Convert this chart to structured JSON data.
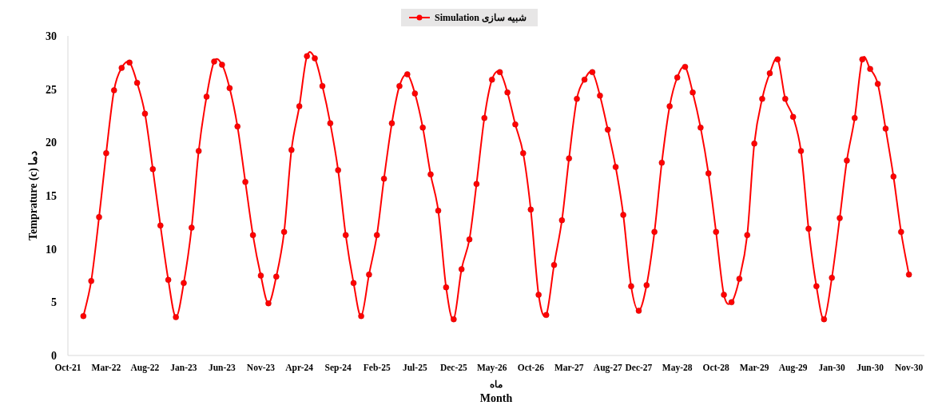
{
  "chart_data": {
    "type": "line",
    "xlabel": "ماه\nMonth",
    "ylabel": "Temprature (c) دما",
    "x": [
      "2021-12",
      "2022-01",
      "2022-02",
      "2022-03",
      "2022-04",
      "2022-05",
      "2022-06",
      "2022-07",
      "2022-08",
      "2022-09",
      "2022-10",
      "2022-11",
      "2022-12",
      "2023-01",
      "2023-02",
      "2023-03",
      "2023-04",
      "2023-05",
      "2023-06",
      "2023-07",
      "2023-08",
      "2023-09",
      "2023-10",
      "2023-11",
      "2023-12",
      "2024-01",
      "2024-02",
      "2024-03",
      "2024-04",
      "2024-05",
      "2024-06",
      "2024-07",
      "2024-08",
      "2024-09",
      "2024-10",
      "2024-11",
      "2024-12",
      "2025-01",
      "2025-02",
      "2025-03",
      "2025-04",
      "2025-05",
      "2025-06",
      "2025-07",
      "2025-08",
      "2025-09",
      "2025-10",
      "2025-11",
      "2025-12",
      "2026-01",
      "2026-02",
      "2026-03",
      "2026-04",
      "2026-05",
      "2026-06",
      "2026-07",
      "2026-08",
      "2026-09",
      "2026-10",
      "2026-11",
      "2026-12",
      "2027-01",
      "2027-02",
      "2027-03",
      "2027-04",
      "2027-05",
      "2027-06",
      "2027-07",
      "2027-08",
      "2027-09",
      "2027-10",
      "2027-11",
      "2027-12",
      "2028-01",
      "2028-02",
      "2028-03",
      "2028-04",
      "2028-05",
      "2028-06",
      "2028-07",
      "2028-08",
      "2028-09",
      "2028-10",
      "2028-11",
      "2028-12",
      "2029-01",
      "2029-02",
      "2029-03",
      "2029-04",
      "2029-05",
      "2029-06",
      "2029-07",
      "2029-08",
      "2029-09",
      "2029-10",
      "2029-11",
      "2029-12",
      "2030-01",
      "2030-02",
      "2030-03",
      "2030-04",
      "2030-05",
      "2030-06",
      "2030-07",
      "2030-08",
      "2030-09",
      "2030-10",
      "2030-11"
    ],
    "series": [
      {
        "name": "Simulation شبیه سازی",
        "color": "#ff0000",
        "values": [
          3.7,
          7.0,
          13.0,
          19.0,
          24.9,
          27.0,
          27.5,
          25.6,
          22.7,
          17.5,
          12.2,
          7.1,
          3.6,
          6.8,
          12.0,
          19.2,
          24.3,
          27.6,
          27.3,
          25.1,
          21.5,
          16.3,
          11.3,
          7.5,
          4.9,
          7.4,
          11.6,
          19.3,
          23.4,
          28.1,
          27.9,
          25.3,
          21.8,
          17.4,
          11.3,
          6.8,
          3.7,
          7.6,
          11.3,
          16.6,
          21.8,
          25.3,
          26.4,
          24.6,
          21.4,
          17.0,
          13.6,
          6.4,
          3.4,
          8.1,
          10.9,
          16.1,
          22.3,
          25.9,
          26.6,
          24.7,
          21.7,
          19.0,
          13.7,
          5.7,
          3.8,
          8.5,
          12.7,
          18.5,
          24.1,
          25.9,
          26.6,
          24.4,
          21.2,
          17.7,
          13.2,
          6.5,
          4.2,
          6.6,
          11.6,
          18.1,
          23.4,
          26.1,
          27.1,
          24.7,
          21.4,
          17.1,
          11.6,
          5.7,
          5.0,
          7.2,
          11.3,
          19.9,
          24.1,
          26.5,
          27.8,
          24.1,
          22.4,
          19.2,
          11.9,
          6.5,
          3.4,
          7.3,
          12.9,
          18.3,
          22.3,
          27.8,
          26.9,
          25.5,
          21.3,
          16.8,
          11.6,
          7.6
        ]
      }
    ],
    "xlim": [
      "2021-10-01",
      "2031-01-01"
    ],
    "xticks": [
      {
        "value": "2021-10",
        "label": "Oct-21"
      },
      {
        "value": "2022-03",
        "label": "Mar-22"
      },
      {
        "value": "2022-08",
        "label": "Aug-22"
      },
      {
        "value": "2023-01",
        "label": "Jan-23"
      },
      {
        "value": "2023-06",
        "label": "Jun-23"
      },
      {
        "value": "2023-11",
        "label": "Nov-23"
      },
      {
        "value": "2024-04",
        "label": "Apr-24"
      },
      {
        "value": "2024-09",
        "label": "Sep-24"
      },
      {
        "value": "2025-02",
        "label": "Feb-25"
      },
      {
        "value": "2025-07",
        "label": "Jul-25"
      },
      {
        "value": "2025-12",
        "label": "Dec-25"
      },
      {
        "value": "2026-05",
        "label": "May-26"
      },
      {
        "value": "2026-10",
        "label": "Oct-26"
      },
      {
        "value": "2027-03",
        "label": "Mar-27"
      },
      {
        "value": "2027-08",
        "label": "Aug-27"
      },
      {
        "value": "2027-12",
        "label": "Dec-27"
      },
      {
        "value": "2028-05",
        "label": "May-28"
      },
      {
        "value": "2028-10",
        "label": "Oct-28"
      },
      {
        "value": "2029-03",
        "label": "Mar-29"
      },
      {
        "value": "2029-08",
        "label": "Aug-29"
      },
      {
        "value": "2030-01",
        "label": "Jan-30"
      },
      {
        "value": "2030-06",
        "label": "Jun-30"
      },
      {
        "value": "2030-11",
        "label": "Nov-30"
      }
    ],
    "ylim": [
      0,
      30
    ],
    "yticks": [
      0,
      5,
      10,
      15,
      20,
      25,
      30
    ],
    "legend": "top",
    "marker": "circle",
    "line_style": "solid"
  }
}
